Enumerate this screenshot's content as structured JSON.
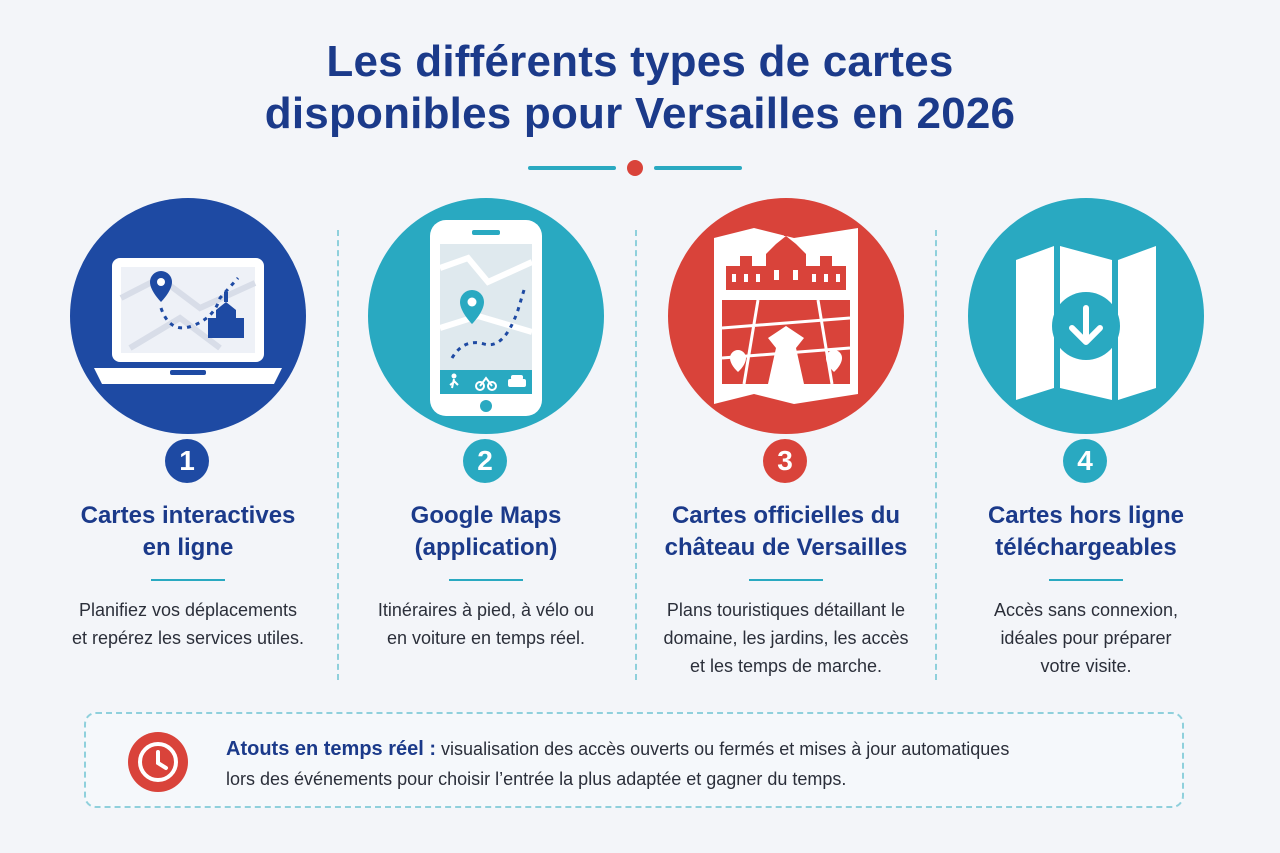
{
  "title_line1": "Les différents types de cartes",
  "title_line2": "disponibles pour Versailles en 2026",
  "colors": {
    "navy": "#1b3a8a",
    "blue": "#1e4aa3",
    "teal": "#29a9c1",
    "red": "#d9433a",
    "background": "#f3f5f9"
  },
  "cards": [
    {
      "number": "1",
      "title_line1": "Cartes interactives",
      "title_line2": "en ligne",
      "desc_line1": "Planifiez vos déplacements",
      "desc_line2": "et repérez les services utiles.",
      "icon": "laptop-map-icon",
      "color": "#1e4aa3"
    },
    {
      "number": "2",
      "title_line1": "Google Maps",
      "title_line2": "(application)",
      "desc_line1": "Itinéraires à pied, à vélo ou",
      "desc_line2": "en voiture en temps réel.",
      "icon": "smartphone-map-icon",
      "color": "#29a9c1"
    },
    {
      "number": "3",
      "title_line1": "Cartes officielles du",
      "title_line2": "château de Versailles",
      "desc_line1": "Plans touristiques détaillant le",
      "desc_line2": "domaine, les jardins, les accès",
      "desc_line3": "et les temps de marche.",
      "icon": "chateau-map-icon",
      "color": "#d9433a"
    },
    {
      "number": "4",
      "title_line1": "Cartes hors ligne",
      "title_line2": "téléchargeables",
      "desc_line1": "Accès sans connexion,",
      "desc_line2": "idéales pour préparer",
      "desc_line3": "votre visite.",
      "icon": "download-map-icon",
      "color": "#29a9c1"
    }
  ],
  "callout": {
    "highlight": "Atouts en temps réel :",
    "text_line1": " visualisation des accès ouverts ou fermés et mises à jour automatiques",
    "text_line2": "lors des événements pour choisir l’entrée la plus adaptée et gagner du temps.",
    "icon": "clock-icon"
  }
}
